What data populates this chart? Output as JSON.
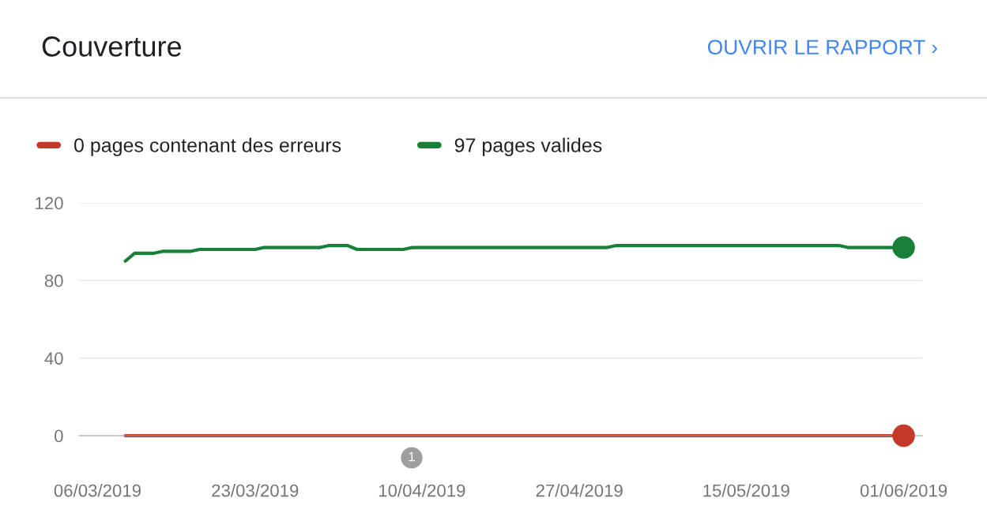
{
  "chart_data": {
    "type": "line",
    "title": "Couverture",
    "annotations": [
      "OUVRIR LE RAPPORT ›",
      "1"
    ],
    "series": [
      {
        "name": "0 pages contenant des erreurs",
        "color": "#c5392b",
        "x": [
          "2019-03-09",
          "2019-06-01"
        ],
        "values": [
          0,
          0
        ]
      },
      {
        "name": "97 pages valides",
        "color": "#188038",
        "x": [
          "2019-03-09",
          "2019-03-10",
          "2019-03-12",
          "2019-03-13",
          "2019-03-16",
          "2019-03-17",
          "2019-03-23",
          "2019-03-24",
          "2019-03-30",
          "2019-03-31",
          "2019-04-02",
          "2019-04-03",
          "2019-04-08",
          "2019-04-09",
          "2019-04-30",
          "2019-05-01",
          "2019-05-25",
          "2019-05-26",
          "2019-06-01"
        ],
        "values": [
          90,
          94,
          94,
          95,
          95,
          96,
          96,
          97,
          97,
          98,
          98,
          96,
          96,
          97,
          97,
          98,
          98,
          97,
          97
        ]
      }
    ],
    "xlim": [
      "2019-03-04",
      "2019-06-03"
    ],
    "xticks": [
      {
        "value": "2019-03-06",
        "label": "06/03/2019"
      },
      {
        "value": "2019-03-23",
        "label": "23/03/2019"
      },
      {
        "value": "2019-04-10",
        "label": "10/04/2019"
      },
      {
        "value": "2019-04-27",
        "label": "27/04/2019"
      },
      {
        "value": "2019-05-15",
        "label": "15/05/2019"
      },
      {
        "value": "2019-06-01",
        "label": "01/06/2019"
      }
    ],
    "ylim": [
      0,
      120
    ],
    "yticks": [
      0,
      40,
      80,
      120
    ],
    "grid": "y",
    "legend": "top left",
    "line_style": "solid"
  }
}
